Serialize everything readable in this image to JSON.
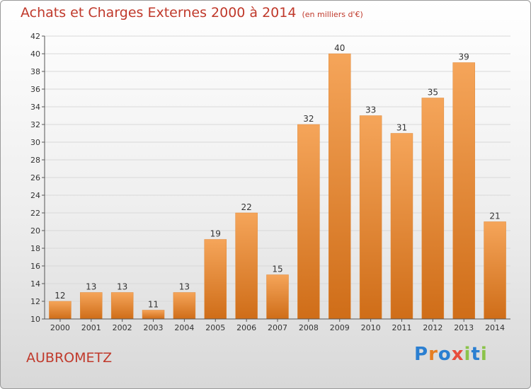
{
  "header": {
    "title": "Achats et Charges Externes 2000 à 2014",
    "unit_note": "(en milliers d'€)"
  },
  "footer": {
    "commune": "AUBROMETZ"
  },
  "logo": {
    "text": "Proxiti",
    "letter_colors": [
      "#2b7fd1",
      "#e67e22",
      "#2b7fd1",
      "#e74c3c",
      "#8bc34a",
      "#2b7fd1",
      "#8bc34a"
    ]
  },
  "colors": {
    "title": "#c0392b",
    "bar_light": "#f5a55a",
    "bar_dark": "#cf6d18",
    "grid": "#d9d9d9"
  },
  "chart_data": {
    "type": "bar",
    "title": "Achats et Charges Externes 2000 à 2014",
    "subtitle": "(en milliers d'€)",
    "xlabel": "",
    "ylabel": "",
    "categories": [
      "2000",
      "2001",
      "2002",
      "2003",
      "2004",
      "2005",
      "2006",
      "2007",
      "2008",
      "2009",
      "2010",
      "2011",
      "2012",
      "2013",
      "2014"
    ],
    "values": [
      12,
      13,
      13,
      11,
      13,
      19,
      22,
      15,
      32,
      40,
      33,
      31,
      35,
      39,
      21
    ],
    "ylim": [
      10,
      42
    ],
    "yticks": [
      10,
      12,
      14,
      16,
      18,
      20,
      22,
      24,
      26,
      28,
      30,
      32,
      34,
      36,
      38,
      40,
      42
    ],
    "grid": true,
    "data_labels": true
  }
}
